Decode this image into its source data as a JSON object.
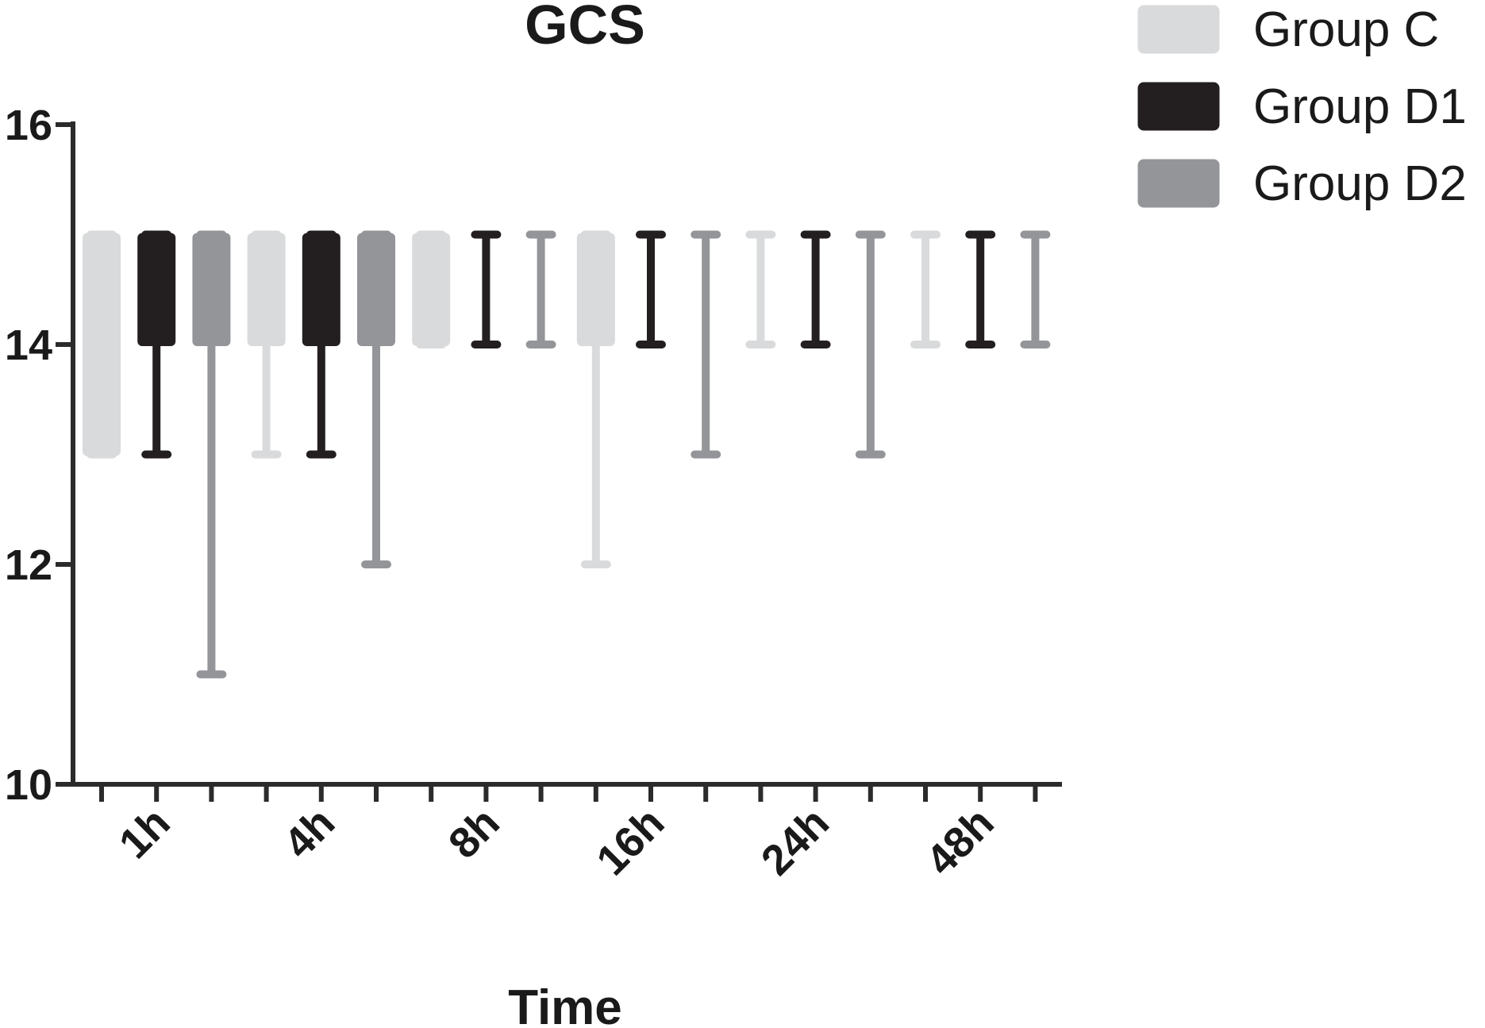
{
  "chart_data": {
    "type": "box",
    "title": "GCS",
    "xlabel": "Time",
    "ylabel": "",
    "ylim": [
      10,
      16
    ],
    "yticks": [
      10,
      12,
      14,
      16
    ],
    "categories": [
      "1h",
      "4h",
      "8h",
      "16h",
      "24h",
      "48h"
    ],
    "legend_position": "top-right",
    "grid": false,
    "series": [
      {
        "name": "Group C",
        "color": "#d9dadb",
        "boxes": [
          {
            "min": 13,
            "q1": 13,
            "median": 15,
            "q3": 15,
            "max": 15
          },
          {
            "min": 13,
            "q1": 14,
            "median": 15,
            "q3": 15,
            "max": 15
          },
          {
            "min": 14,
            "q1": 14,
            "median": 15,
            "q3": 15,
            "max": 15
          },
          {
            "min": 12,
            "q1": 14,
            "median": 15,
            "q3": 15,
            "max": 15
          },
          {
            "min": 14,
            "q1": 15,
            "median": 15,
            "q3": 15,
            "max": 15
          },
          {
            "min": 14,
            "q1": 15,
            "median": 15,
            "q3": 15,
            "max": 15
          }
        ]
      },
      {
        "name": "Group D1",
        "color": "#231f20",
        "boxes": [
          {
            "min": 13,
            "q1": 14,
            "median": 15,
            "q3": 15,
            "max": 15
          },
          {
            "min": 13,
            "q1": 14,
            "median": 15,
            "q3": 15,
            "max": 15
          },
          {
            "min": 14,
            "q1": 15,
            "median": 15,
            "q3": 15,
            "max": 15
          },
          {
            "min": 14,
            "q1": 15,
            "median": 15,
            "q3": 15,
            "max": 15
          },
          {
            "min": 14,
            "q1": 15,
            "median": 15,
            "q3": 15,
            "max": 15
          },
          {
            "min": 14,
            "q1": 15,
            "median": 15,
            "q3": 15,
            "max": 15
          }
        ]
      },
      {
        "name": "Group D2",
        "color": "#939598",
        "boxes": [
          {
            "min": 11,
            "q1": 14,
            "median": 15,
            "q3": 15,
            "max": 15
          },
          {
            "min": 12,
            "q1": 14,
            "median": 15,
            "q3": 15,
            "max": 15
          },
          {
            "min": 14,
            "q1": 15,
            "median": 15,
            "q3": 15,
            "max": 15
          },
          {
            "min": 13,
            "q1": 15,
            "median": 15,
            "q3": 15,
            "max": 15
          },
          {
            "min": 13,
            "q1": 15,
            "median": 15,
            "q3": 15,
            "max": 15
          },
          {
            "min": 14,
            "q1": 15,
            "median": 15,
            "q3": 15,
            "max": 15
          }
        ]
      }
    ]
  }
}
